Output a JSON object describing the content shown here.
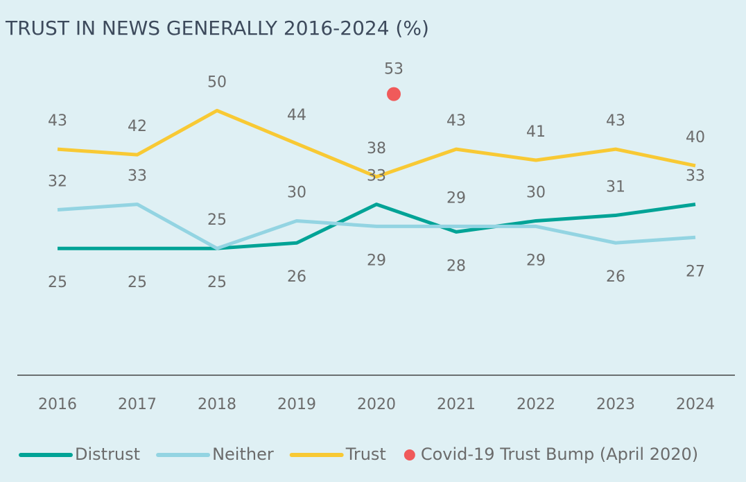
{
  "chart_data": {
    "type": "line",
    "title": "TRUST IN NEWS GENERALLY 2016-2024 (%)",
    "categories": [
      "2016",
      "2017",
      "2018",
      "2019",
      "2020",
      "2021",
      "2022",
      "2023",
      "2024"
    ],
    "series": [
      {
        "name": "Distrust",
        "color": "#00a396",
        "values": [
          25,
          25,
          25,
          26,
          33,
          28,
          30,
          31,
          33
        ]
      },
      {
        "name": "Neither",
        "color": "#93d4e2",
        "values": [
          32,
          33,
          25,
          30,
          29,
          29,
          29,
          26,
          27
        ]
      },
      {
        "name": "Trust",
        "color": "#f8c934",
        "values": [
          43,
          42,
          50,
          44,
          38,
          43,
          41,
          43,
          40
        ]
      },
      {
        "name": "Covid-19 Trust Bump (April 2020)",
        "color": "#f05a5a",
        "style": "dot",
        "values": [
          null,
          null,
          null,
          null,
          53,
          null,
          null,
          null,
          null
        ]
      }
    ],
    "ylim": [
      2,
      60
    ]
  }
}
